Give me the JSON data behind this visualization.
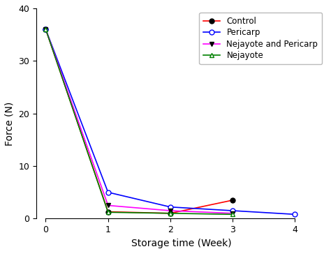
{
  "x": [
    0,
    1,
    2,
    3,
    4
  ],
  "series": [
    {
      "label": "Control",
      "color": "red",
      "marker": "o",
      "marker_filled": true,
      "y": [
        36.0,
        1.3,
        1.0,
        3.5,
        null
      ]
    },
    {
      "label": "Pericarp",
      "color": "blue",
      "marker": "o",
      "marker_filled": false,
      "y": [
        36.0,
        5.0,
        2.2,
        1.5,
        0.8
      ]
    },
    {
      "label": "Nejayote and Pericarp",
      "color": "magenta",
      "marker": "v",
      "marker_filled": true,
      "y": [
        36.0,
        2.5,
        1.5,
        1.0,
        null
      ]
    },
    {
      "label": "Nejayote",
      "color": "green",
      "marker": "^",
      "marker_filled": false,
      "y": [
        36.0,
        1.2,
        1.0,
        0.8,
        null
      ]
    }
  ],
  "xlabel": "Storage time (Week)",
  "ylabel": "Force (N)",
  "xlim": [
    -0.15,
    4.5
  ],
  "ylim": [
    -4,
    40
  ],
  "yticks": [
    0,
    10,
    20,
    30,
    40
  ],
  "xticks": [
    0,
    1,
    2,
    3,
    4
  ],
  "legend_loc": "upper right",
  "background_color": "#ffffff",
  "legend_fontsize": 8.5,
  "axis_fontsize": 10,
  "tick_fontsize": 9
}
